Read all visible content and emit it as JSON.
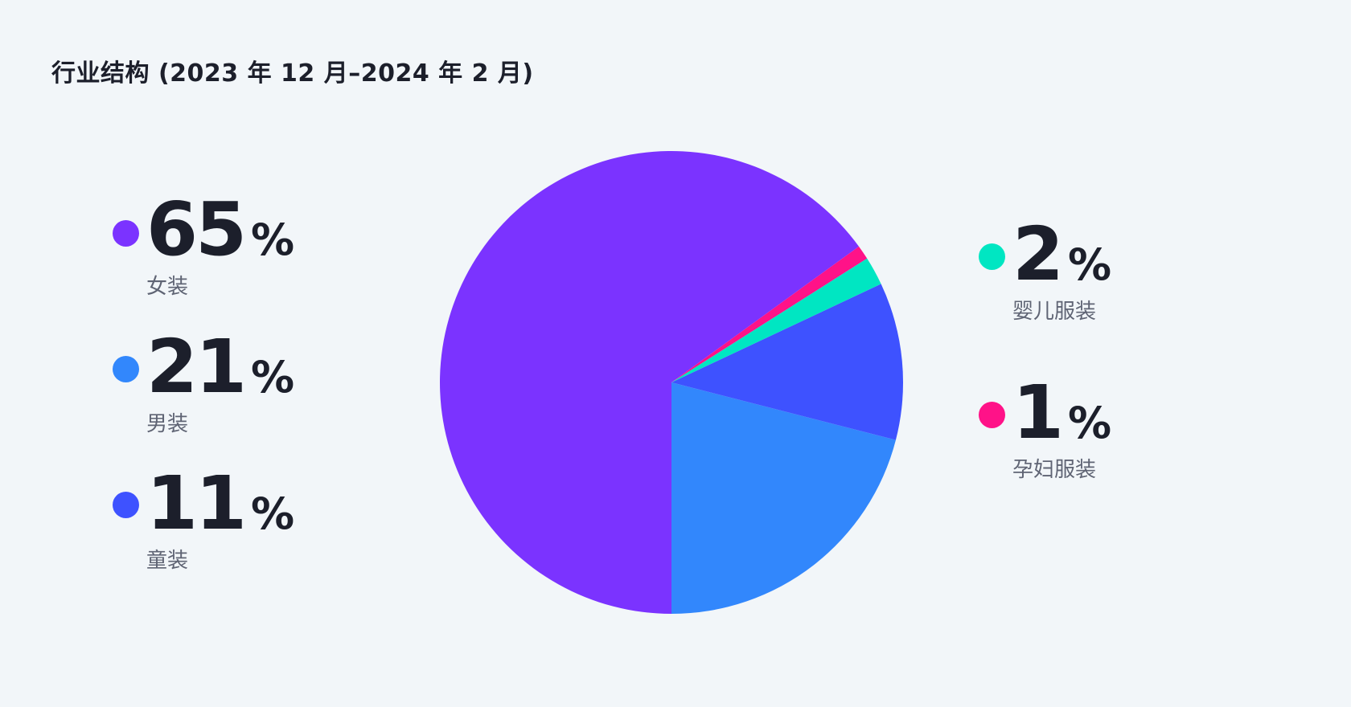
{
  "title": "行业结构 (2023 年 12 月–2024 年 2 月)",
  "unit_symbol": "%",
  "chart_data": {
    "type": "pie",
    "title": "行业结构 (2023 年 12 月–2024 年 2 月)",
    "unit": "%",
    "slices": [
      {
        "label": "女装",
        "value": 65,
        "color": "#7b33ff"
      },
      {
        "label": "男装",
        "value": 21,
        "color": "#3287fc"
      },
      {
        "label": "童装",
        "value": 11,
        "color": "#3e52ff"
      },
      {
        "label": "婴儿服装",
        "value": 2,
        "color": "#00e6c2"
      },
      {
        "label": "孕妇服装",
        "value": 1,
        "color": "#ff1288"
      }
    ]
  }
}
